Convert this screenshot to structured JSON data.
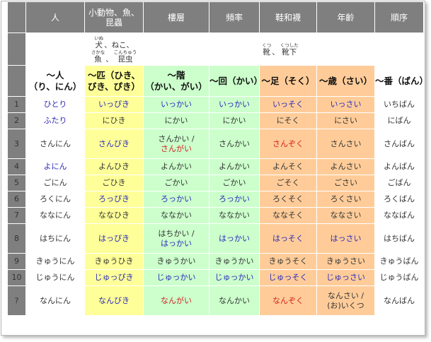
{
  "headers": [
    {
      "key": "num",
      "label": ""
    },
    {
      "key": "hito",
      "label": "人"
    },
    {
      "key": "hiki",
      "label": "小動物、魚、昆蟲"
    },
    {
      "key": "kai",
      "label": "樓層"
    },
    {
      "key": "kai2",
      "label": "頻率"
    },
    {
      "key": "soku",
      "label": "鞋和襪"
    },
    {
      "key": "sai",
      "label": "年齡"
    },
    {
      "key": "ban",
      "label": "順序"
    }
  ],
  "ruby_examples": {
    "hiki": [
      [
        {
          "base": "犬",
          "reading": "いぬ"
        },
        {
          "base": "、ねこ、",
          "reading": ""
        }
      ],
      [
        {
          "base": "魚",
          "reading": "さかな"
        },
        {
          "base": "、",
          "reading": ""
        },
        {
          "base": "昆虫",
          "reading": "こんちゅう"
        }
      ]
    ],
    "soku": [
      [
        {
          "base": "靴",
          "reading": "くつ"
        },
        {
          "base": "、",
          "reading": ""
        },
        {
          "base": "靴下",
          "reading": "くつした"
        }
      ]
    ]
  },
  "counters": {
    "hito": [
      "～人",
      "（り、にん）"
    ],
    "hiki": [
      "～匹（ひき、",
      "びき、ぴき）"
    ],
    "kai": [
      "～階",
      "（かい、がい）"
    ],
    "kai2": [
      "～回（かい）"
    ],
    "soku": [
      "～足（そく）"
    ],
    "sai": [
      "～歳（さい）"
    ],
    "ban": [
      "～番（ばん）"
    ]
  },
  "rows": [
    {
      "num": "1",
      "hito": [
        {
          "t": "ひとり",
          "c": "blue"
        }
      ],
      "hiki": [
        {
          "t": "いっぴき",
          "c": "blue"
        }
      ],
      "kai": [
        {
          "t": "いっかい",
          "c": "blue"
        }
      ],
      "kai2": [
        {
          "t": "いっかい",
          "c": "blue"
        }
      ],
      "soku": [
        {
          "t": "いっそく",
          "c": "blue"
        }
      ],
      "sai": [
        {
          "t": "いっさい",
          "c": "blue"
        }
      ],
      "ban": [
        {
          "t": "いちばん",
          "c": ""
        }
      ]
    },
    {
      "num": "2",
      "hito": [
        {
          "t": "ふたり",
          "c": "blue"
        }
      ],
      "hiki": [
        {
          "t": "にひき",
          "c": ""
        }
      ],
      "kai": [
        {
          "t": "にかい",
          "c": ""
        }
      ],
      "kai2": [
        {
          "t": "にかい",
          "c": ""
        }
      ],
      "soku": [
        {
          "t": "にそく",
          "c": ""
        }
      ],
      "sai": [
        {
          "t": "にさい",
          "c": ""
        }
      ],
      "ban": [
        {
          "t": "にばん",
          "c": ""
        }
      ]
    },
    {
      "num": "3",
      "hito": [
        {
          "t": "さんにん",
          "c": ""
        }
      ],
      "hiki": [
        {
          "t": "さんびき",
          "c": "blue"
        }
      ],
      "kai": [
        {
          "t": "さんかい /",
          "c": ""
        },
        {
          "t": "さんがい",
          "c": "red"
        }
      ],
      "kai2": [
        {
          "t": "さんかい",
          "c": ""
        }
      ],
      "soku": [
        {
          "t": "さんぞく",
          "c": "red"
        }
      ],
      "sai": [
        {
          "t": "さんさい",
          "c": ""
        }
      ],
      "ban": [
        {
          "t": "さんばん",
          "c": ""
        }
      ]
    },
    {
      "num": "4",
      "hito": [
        {
          "t": "よにん",
          "c": "blue"
        }
      ],
      "hiki": [
        {
          "t": "よんひき",
          "c": ""
        }
      ],
      "kai": [
        {
          "t": "よんかい",
          "c": ""
        }
      ],
      "kai2": [
        {
          "t": "よんかい",
          "c": ""
        }
      ],
      "soku": [
        {
          "t": "よんそく",
          "c": ""
        }
      ],
      "sai": [
        {
          "t": "よんさい",
          "c": ""
        }
      ],
      "ban": [
        {
          "t": "よんばん",
          "c": ""
        }
      ]
    },
    {
      "num": "5",
      "hito": [
        {
          "t": "ごにん",
          "c": ""
        }
      ],
      "hiki": [
        {
          "t": "ごひき",
          "c": ""
        }
      ],
      "kai": [
        {
          "t": "ごかい",
          "c": ""
        }
      ],
      "kai2": [
        {
          "t": "ごかい",
          "c": ""
        }
      ],
      "soku": [
        {
          "t": "ごそく",
          "c": ""
        }
      ],
      "sai": [
        {
          "t": "ごさい",
          "c": ""
        }
      ],
      "ban": [
        {
          "t": "ごばん",
          "c": ""
        }
      ]
    },
    {
      "num": "6",
      "hito": [
        {
          "t": "ろくにん",
          "c": ""
        }
      ],
      "hiki": [
        {
          "t": "ろっぴき",
          "c": "blue"
        }
      ],
      "kai": [
        {
          "t": "ろっかい",
          "c": "blue"
        }
      ],
      "kai2": [
        {
          "t": "ろっかい",
          "c": "blue"
        }
      ],
      "soku": [
        {
          "t": "ろくそく",
          "c": ""
        }
      ],
      "sai": [
        {
          "t": "ろくさい",
          "c": ""
        }
      ],
      "ban": [
        {
          "t": "ろくばん",
          "c": ""
        }
      ]
    },
    {
      "num": "7",
      "hito": [
        {
          "t": "ななにん",
          "c": ""
        }
      ],
      "hiki": [
        {
          "t": "ななひき",
          "c": ""
        }
      ],
      "kai": [
        {
          "t": "ななかい",
          "c": ""
        }
      ],
      "kai2": [
        {
          "t": "ななかい",
          "c": ""
        }
      ],
      "soku": [
        {
          "t": "ななそく",
          "c": ""
        }
      ],
      "sai": [
        {
          "t": "ななさい",
          "c": ""
        }
      ],
      "ban": [
        {
          "t": "ななばん",
          "c": ""
        }
      ]
    },
    {
      "num": "8",
      "hito": [
        {
          "t": "はちにん",
          "c": ""
        }
      ],
      "hiki": [
        {
          "t": "はっぴき",
          "c": "blue"
        }
      ],
      "kai": [
        {
          "t": "はちかい /",
          "c": ""
        },
        {
          "t": "はっかい",
          "c": "blue"
        }
      ],
      "kai2": [
        {
          "t": "はっかい",
          "c": "blue"
        }
      ],
      "soku": [
        {
          "t": "はっそく",
          "c": "blue"
        }
      ],
      "sai": [
        {
          "t": "はっさい",
          "c": "blue"
        }
      ],
      "ban": [
        {
          "t": "はちばん",
          "c": ""
        }
      ]
    },
    {
      "num": "9",
      "hito": [
        {
          "t": "きゅうにん",
          "c": ""
        }
      ],
      "hiki": [
        {
          "t": "きゅうひき",
          "c": ""
        }
      ],
      "kai": [
        {
          "t": "きゅうかい",
          "c": ""
        }
      ],
      "kai2": [
        {
          "t": "きゅうかい",
          "c": ""
        }
      ],
      "soku": [
        {
          "t": "きゅうそく",
          "c": ""
        }
      ],
      "sai": [
        {
          "t": "きゅうさい",
          "c": ""
        }
      ],
      "ban": [
        {
          "t": "きゅうばん",
          "c": ""
        }
      ]
    },
    {
      "num": "10",
      "hito": [
        {
          "t": "じゅうにん",
          "c": ""
        }
      ],
      "hiki": [
        {
          "t": "じゅっぴき",
          "c": "blue"
        }
      ],
      "kai": [
        {
          "t": "じゅっかい",
          "c": "blue"
        }
      ],
      "kai2": [
        {
          "t": "じゅっかい",
          "c": "blue"
        }
      ],
      "soku": [
        {
          "t": "じゅっそく",
          "c": "blue"
        }
      ],
      "sai": [
        {
          "t": "じゅっさい",
          "c": "blue"
        }
      ],
      "ban": [
        {
          "t": "じゅうばん",
          "c": ""
        }
      ]
    },
    {
      "num": "?",
      "hito": [
        {
          "t": "なんにん",
          "c": ""
        }
      ],
      "hiki": [
        {
          "t": "なんびき",
          "c": "blue"
        }
      ],
      "kai": [
        {
          "t": "なんがい",
          "c": "red"
        }
      ],
      "kai2": [
        {
          "t": "なんかい",
          "c": ""
        }
      ],
      "soku": [
        {
          "t": "なんぞく",
          "c": "red"
        }
      ],
      "sai": [
        {
          "t": "なんさい /",
          "c": ""
        },
        {
          "t": "(お)いくつ",
          "c": ""
        }
      ],
      "ban": [
        {
          "t": "なんばん",
          "c": ""
        }
      ]
    }
  ],
  "colors": {
    "header_bg": "#7f7f7f",
    "hiki_bg": "#ffff99",
    "kai_bg": "#ccffcc",
    "soku_bg": "#ffcc99",
    "special_blue": "#2a2ab8",
    "special_red": "#d42020"
  }
}
